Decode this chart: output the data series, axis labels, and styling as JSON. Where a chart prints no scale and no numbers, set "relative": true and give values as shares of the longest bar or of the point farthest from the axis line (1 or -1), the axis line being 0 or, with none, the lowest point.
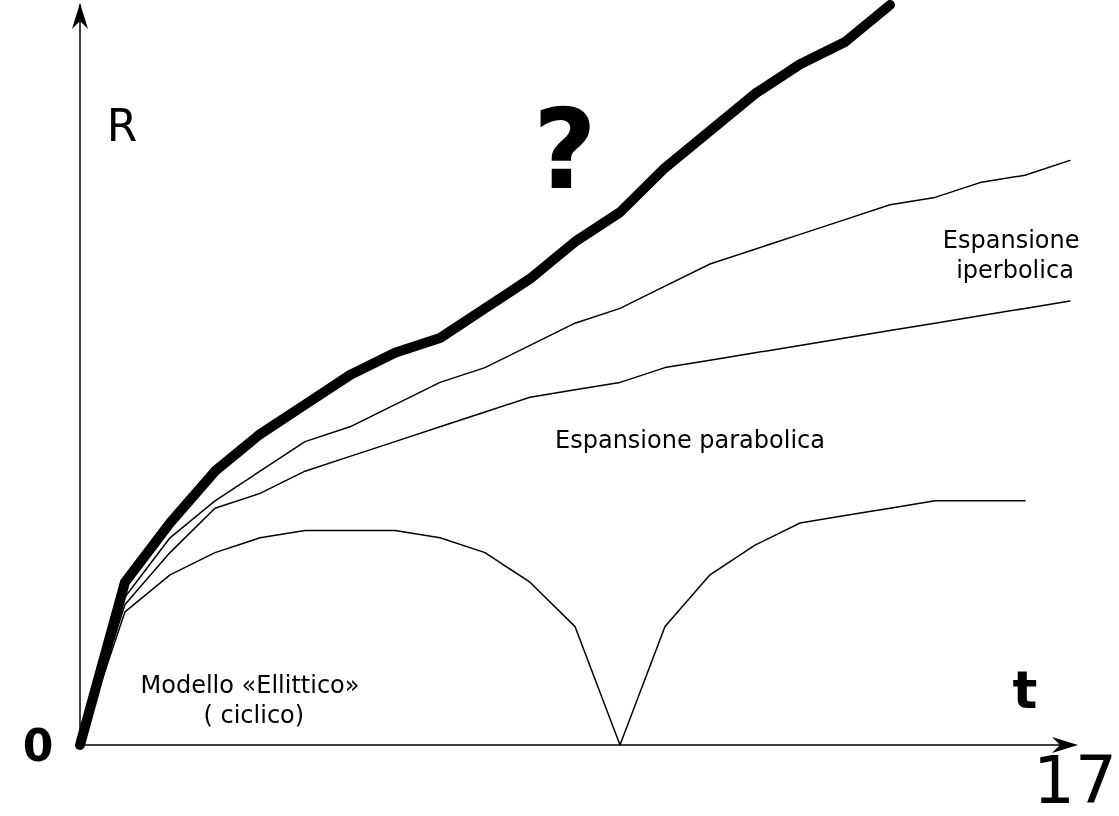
{
  "chart_data": {
    "type": "line",
    "relative": true,
    "xlabel": "t",
    "ylabel": "R",
    "categories": [
      null,
      null,
      null,
      null,
      null,
      null,
      null,
      null,
      null,
      null,
      null,
      null,
      null,
      null,
      null,
      null,
      null,
      null,
      null,
      null,
      null,
      null,
      null
    ],
    "series": [
      {
        "color": "#000000",
        "values": [
          0,
          0.22,
          0.3,
          0.37,
          0.42,
          0.46,
          0.5,
          0.53,
          0.55,
          0.59,
          0.63,
          0.68,
          0.72,
          0.78,
          0.83,
          0.88,
          0.92,
          0.95,
          1,
          null,
          null,
          null,
          null
        ]
      },
      {
        "color": "#000000",
        "values": [
          0,
          0.2,
          0.28,
          0.33,
          0.37,
          0.41,
          0.43,
          0.46,
          0.49,
          0.51,
          0.54,
          0.57,
          0.59,
          0.62,
          0.65,
          0.67,
          0.69,
          0.71,
          0.73,
          0.74,
          0.76,
          0.77,
          0.79
        ]
      },
      {
        "color": "#000000",
        "values": [
          0,
          0.19,
          0.26,
          0.32,
          0.34,
          0.37,
          0.39,
          0.41,
          0.43,
          0.45,
          0.47,
          0.48,
          0.49,
          0.51,
          0.52,
          0.53,
          0.54,
          0.55,
          0.56,
          0.57,
          0.58,
          0.59,
          0.6
        ]
      },
      {
        "color": "#000000",
        "values": [
          0,
          0.18,
          0.23,
          0.26,
          0.28,
          0.29,
          0.29,
          0.29,
          0.28,
          0.26,
          0.22,
          0.16,
          0,
          0.16,
          0.23,
          0.27,
          0.3,
          0.31,
          0.32,
          0.33,
          0.33,
          0.33,
          null
        ]
      }
    ],
    "annotations": [
      "?",
      "Espansione iperbolica",
      "Espansione parabolica",
      "Modello «Ellittico» ( ciclico)",
      "0",
      "17"
    ],
    "grid": false,
    "marker": "none",
    "line_style": "solid"
  }
}
